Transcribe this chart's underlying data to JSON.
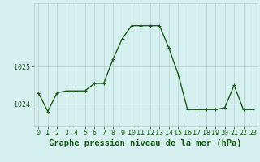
{
  "x": [
    0,
    1,
    2,
    3,
    4,
    5,
    6,
    7,
    8,
    9,
    10,
    11,
    12,
    13,
    14,
    15,
    16,
    17,
    18,
    19,
    20,
    21,
    22,
    23
  ],
  "y": [
    1024.3,
    1023.8,
    1024.3,
    1024.35,
    1024.35,
    1024.35,
    1024.55,
    1024.55,
    1025.2,
    1025.75,
    1026.1,
    1026.1,
    1026.1,
    1026.1,
    1025.5,
    1024.8,
    1023.85,
    1023.85,
    1023.85,
    1023.85,
    1023.9,
    1024.5,
    1023.85,
    1023.85
  ],
  "line_color": "#1a5c1a",
  "marker": "+",
  "markersize": 3,
  "linewidth": 1.0,
  "bg_color": "#d6f0f0",
  "grid_color": "#b8d0d0",
  "title": "Graphe pression niveau de la mer (hPa)",
  "title_color": "#1a5c1a",
  "title_fontsize": 7.5,
  "tick_color": "#1a5c1a",
  "tick_fontsize": 6,
  "ylim_min": 1023.4,
  "ylim_max": 1026.7,
  "xlim_min": -0.5,
  "xlim_max": 23.5,
  "yticks": [
    1024,
    1025
  ],
  "ytick_labels": [
    "1024",
    "1025"
  ]
}
